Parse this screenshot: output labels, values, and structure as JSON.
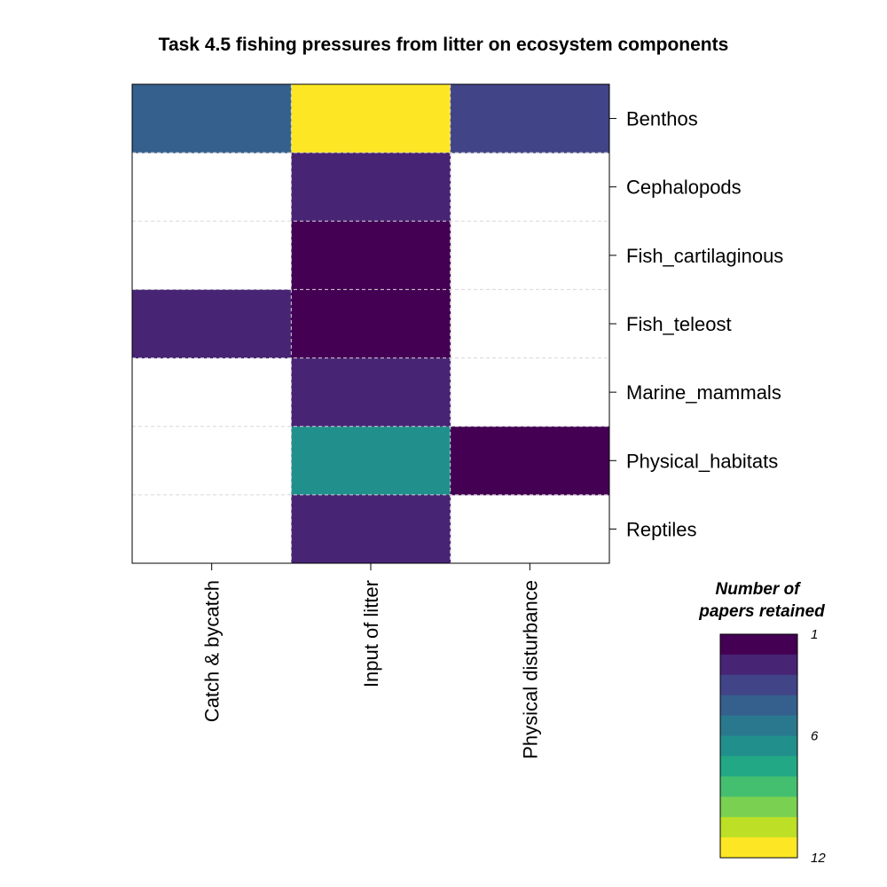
{
  "chart_data": {
    "type": "heatmap",
    "title": "Task 4.5 fishing pressures from litter on ecosystem components",
    "columns": [
      "Catch & bycatch",
      "Input of litter",
      "Physical disturbance"
    ],
    "rows": [
      "Benthos",
      "Cephalopods",
      "Fish_cartilaginous",
      "Fish_teleost",
      "Marine_mammals",
      "Physical_habitats",
      "Reptiles"
    ],
    "values": [
      [
        4,
        12,
        3
      ],
      [
        null,
        2,
        null
      ],
      [
        null,
        1,
        null
      ],
      [
        2,
        1,
        null
      ],
      [
        null,
        2,
        null
      ],
      [
        null,
        6,
        1
      ],
      [
        null,
        2,
        null
      ]
    ],
    "value_range": [
      1,
      12
    ],
    "grid": true,
    "legend": {
      "title_line1": "Number of",
      "title_line2": "papers retained",
      "ticks": [
        {
          "value": 1,
          "label": "1"
        },
        {
          "value": 6,
          "label": "6"
        },
        {
          "value": 12,
          "label": "12"
        }
      ],
      "colors": [
        "#440154",
        "#482475",
        "#414487",
        "#355F8D",
        "#2A788E",
        "#21908C",
        "#22A884",
        "#44BF70",
        "#7AD151",
        "#BDDF26",
        "#FDE725"
      ],
      "placement": "bottom-right"
    }
  }
}
